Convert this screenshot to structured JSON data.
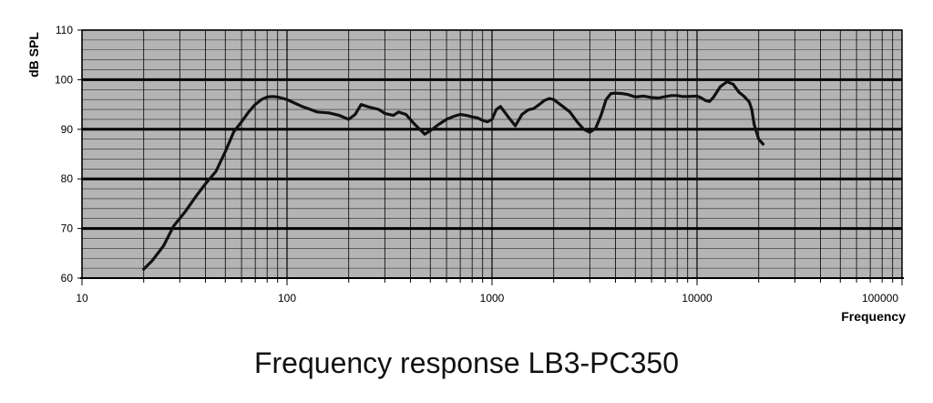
{
  "chart_data": {
    "type": "line",
    "title": "Frequency response LB3-PC350",
    "xlabel": "Frequency",
    "ylabel": "dB SPL",
    "xscale": "log",
    "xlim": [
      10,
      100000
    ],
    "ylim": [
      60,
      110
    ],
    "xticks": [
      10,
      100,
      1000,
      10000,
      100000
    ],
    "yticks": [
      60,
      70,
      80,
      90,
      100,
      110
    ],
    "grid": true,
    "legend": "none",
    "colors": {
      "plot_background": "#b4b4b4",
      "line": "#111111",
      "grid": "#000000"
    },
    "series": [
      {
        "x": [
          20,
          22,
          25,
          28,
          32,
          36,
          40,
          45,
          50,
          55,
          60,
          65,
          70,
          75,
          80,
          85,
          90,
          100,
          110,
          120,
          130,
          140,
          160,
          180,
          200,
          215,
          230,
          250,
          280,
          300,
          330,
          350,
          380,
          420,
          470,
          500,
          550,
          600,
          650,
          700,
          750,
          800,
          850,
          900,
          950,
          1000,
          1050,
          1100,
          1200,
          1300,
          1400,
          1500,
          1600,
          1700,
          1800,
          1900,
          2000,
          2200,
          2400,
          2600,
          2800,
          3000,
          3200,
          3400,
          3600,
          3800,
          4000,
          4300,
          4600,
          5000,
          5500,
          6000,
          6500,
          7000,
          7500,
          8000,
          8500,
          9000,
          10000,
          10500,
          11000,
          11500,
          12000,
          13000,
          14000,
          15000,
          16000,
          17000,
          18000,
          18500,
          19000,
          20000,
          21000
        ],
        "values": [
          61.8,
          63.5,
          66.5,
          70.5,
          73.5,
          76.5,
          79.0,
          81.5,
          85.5,
          89.5,
          91.5,
          93.5,
          95.0,
          96.0,
          96.5,
          96.6,
          96.5,
          96.0,
          95.2,
          94.5,
          94.0,
          93.5,
          93.3,
          92.8,
          92.0,
          93.0,
          95.0,
          94.5,
          94.0,
          93.2,
          92.8,
          93.5,
          93.0,
          91.0,
          89.0,
          89.7,
          91.0,
          92.0,
          92.6,
          93.0,
          92.8,
          92.5,
          92.3,
          91.8,
          91.5,
          92.0,
          94.0,
          94.6,
          92.5,
          90.7,
          93.0,
          93.9,
          94.2,
          95.0,
          95.8,
          96.2,
          96.0,
          94.7,
          93.5,
          91.5,
          90.0,
          89.4,
          90.2,
          92.8,
          96.0,
          97.2,
          97.3,
          97.2,
          97.0,
          96.5,
          96.7,
          96.4,
          96.3,
          96.6,
          96.8,
          96.8,
          96.6,
          96.6,
          96.7,
          96.3,
          95.8,
          95.6,
          96.4,
          98.6,
          99.6,
          99.1,
          97.5,
          96.6,
          95.5,
          94.0,
          91.0,
          88.0,
          87.0
        ]
      }
    ]
  }
}
